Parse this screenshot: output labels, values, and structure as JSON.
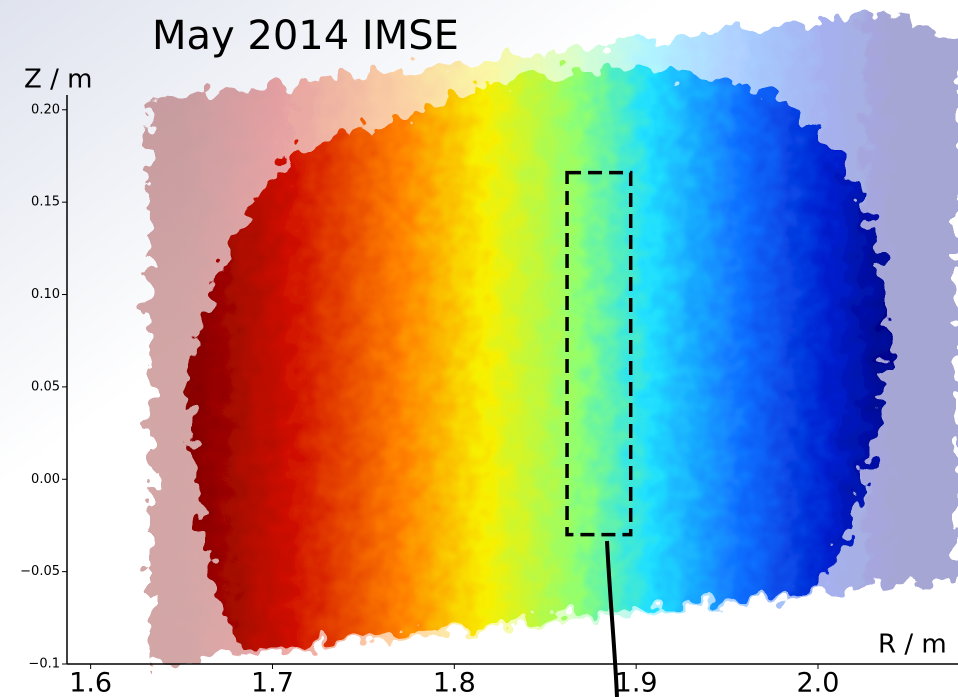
{
  "chart_data": {
    "type": "heatmap",
    "title": "May 2014 IMSE",
    "ylabel": "Z / m",
    "xlabel": "R / m",
    "xlim": [
      1.587,
      2.077
    ],
    "ylim": [
      -0.1,
      0.208
    ],
    "xticks": [
      1.6,
      1.7,
      1.8,
      1.9,
      {
        "value": 2,
        "label": "2.0"
      }
    ],
    "yticks": [
      {
        "value": -0.1,
        "label": "−0.1"
      },
      {
        "value": -0.05,
        "label": "−0.05"
      },
      {
        "value": 0,
        "label": "0.00"
      },
      {
        "value": 0.05,
        "label": "0.05"
      },
      {
        "value": 0.1,
        "label": "0.10"
      },
      {
        "value": 0.15,
        "label": "0.15"
      },
      {
        "value": 0.2,
        "label": "0.20"
      }
    ],
    "highlight_box": {
      "x": [
        1.862,
        1.897
      ],
      "y": [
        -0.03,
        0.166
      ]
    }
  }
}
